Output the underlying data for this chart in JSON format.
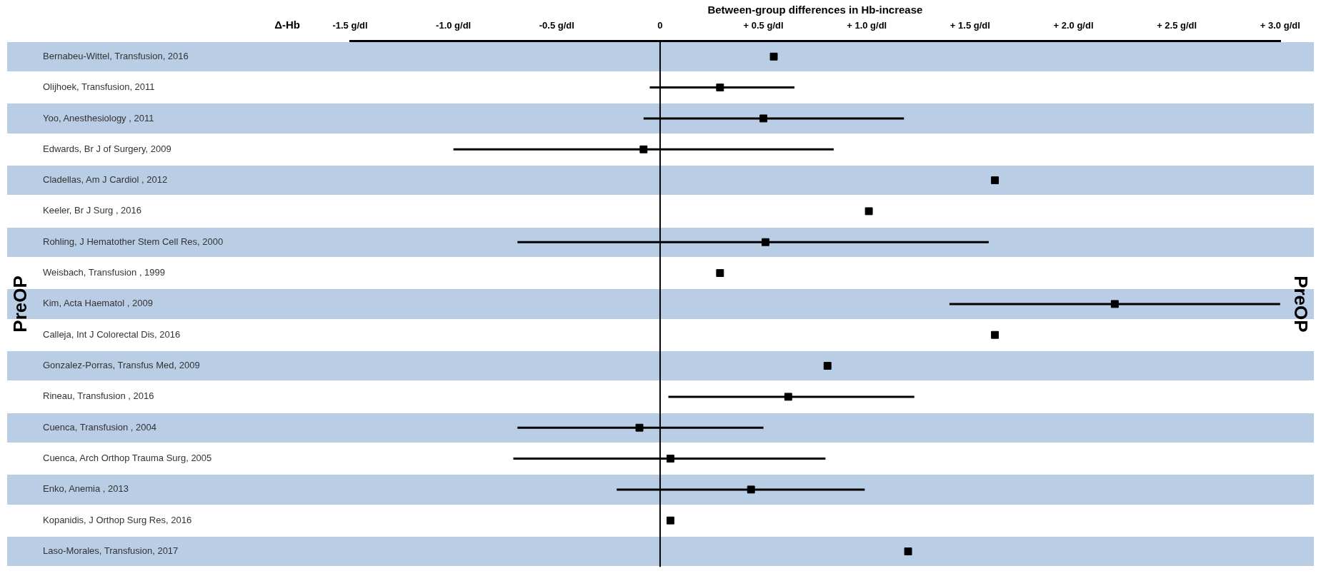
{
  "chart_data": {
    "type": "scatter",
    "orientation": "horizontal",
    "xlabel": "Between-group differences in Hb-increase",
    "ylabel": "PreOP",
    "y2label": "PreOP",
    "categories": [
      "Bernabeu-Wittel, Transfusion, 2016",
      "Olijhoek, Transfusion, 2011",
      "Yoo, Anesthesiology , 2011",
      "Edwards, Br J of Surgery, 2009",
      "Cladellas, Am J Cardiol , 2012",
      "Keeler, Br J Surg , 2016",
      "Rohling, J Hematother Stem Cell Res, 2000",
      "Weisbach, Transfusion , 1999",
      "Kim, Acta Haematol , 2009",
      "Calleja, Int J Colorectal Dis, 2016",
      "Gonzalez-Porras, Transfus Med, 2009",
      "Rineau, Transfusion , 2016",
      "Cuenca, Transfusion , 2004",
      "Cuenca, Arch Orthop Trauma Surg, 2005",
      "Enko, Anemia , 2013",
      "Kopanidis, J Orthop Surg Res, 2016",
      "Laso-Morales, Transfusion, 2017"
    ],
    "series": [
      {
        "color": "#000000",
        "marker": "square",
        "values": [
          null,
          0.29,
          0.5,
          -0.08,
          null,
          null,
          0.51,
          null,
          2.2,
          null,
          null,
          0.62,
          -0.1,
          0.05,
          0.44,
          null,
          null
        ],
        "errors": [
          null,
          [
            -0.05,
            0.65
          ],
          [
            -0.08,
            1.18
          ],
          [
            -1.0,
            0.84
          ],
          null,
          null,
          [
            -0.69,
            1.59
          ],
          null,
          [
            1.4,
            3.0
          ],
          null,
          null,
          [
            0.04,
            1.23
          ],
          [
            -0.69,
            0.5
          ],
          [
            -0.71,
            0.8
          ],
          [
            -0.21,
            0.99
          ],
          null,
          null
        ]
      },
      {
        "color": "#000000",
        "marker": "square",
        "values": [
          0.55,
          null,
          null,
          null,
          1.62,
          1.01,
          null,
          0.29,
          null,
          1.62,
          0.81,
          null,
          null,
          null,
          null,
          0.05,
          1.2
        ]
      }
    ],
    "xlim": [
      -1.5,
      3.0
    ],
    "xticks": [
      {
        "value": -1.5,
        "label": "-1.5 g/dl"
      },
      {
        "value": -1.0,
        "label": "-1.0 g/dl"
      },
      {
        "value": -0.5,
        "label": "-0.5 g/dl"
      },
      0,
      {
        "value": 0.5,
        "label": "+ 0.5 g/dl"
      },
      {
        "value": 1.0,
        "label": "+ 1.0 g/dl"
      },
      {
        "value": 1.5,
        "label": "+ 1.5 g/dl"
      },
      {
        "value": 2.0,
        "label": "+ 2.0 g/dl"
      },
      {
        "value": 2.5,
        "label": "+ 2.5 g/dl"
      },
      {
        "value": 3.0,
        "label": "+ 3.0 g/dl"
      }
    ],
    "ref_lines": [
      {
        "axis": "x",
        "value": 0,
        "color": "#000000"
      }
    ],
    "annotations": [
      "Δ-Hb"
    ],
    "grid": false,
    "legend": false
  }
}
